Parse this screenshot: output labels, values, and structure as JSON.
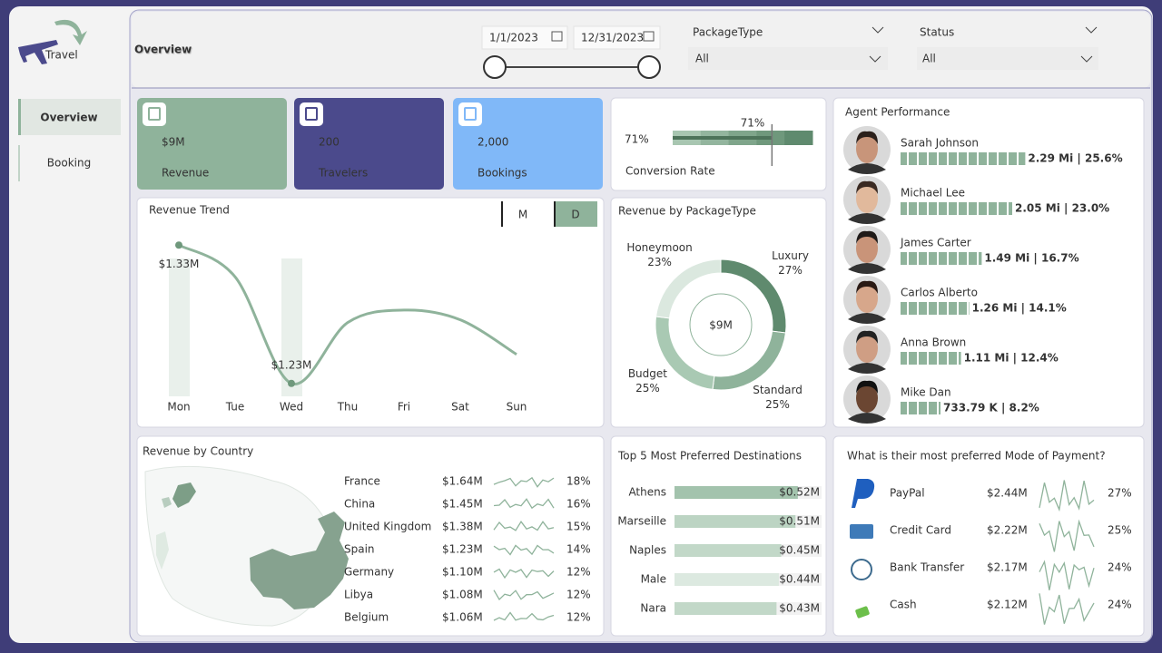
{
  "header": {
    "logo": "Travel",
    "title": "Overview"
  },
  "filters": {
    "start_date": "1/1/2023",
    "end_date": "12/31/2023",
    "package_type": {
      "label": "PackageType",
      "value": "All"
    },
    "status": {
      "label": "Status",
      "value": "All"
    }
  },
  "nav": {
    "items": [
      "Overview",
      "Booking"
    ],
    "active": 0
  },
  "kpis": [
    {
      "value": "$9M",
      "label": "Revenue",
      "color": "#8fb39b"
    },
    {
      "value": "200",
      "label": "Travelers",
      "color": "#4b4a8c"
    },
    {
      "value": "2,000",
      "label": "Bookings",
      "color": "#80b8f8"
    }
  ],
  "chart_data": [
    {
      "type": "bullet",
      "title": "Conversion Rate",
      "values": [
        71
      ],
      "value_labels": [
        "71%"
      ],
      "target": 71,
      "target_label": "71%",
      "xlim": [
        0,
        100
      ],
      "color": "#5f8a6e"
    },
    {
      "type": "line",
      "title": "Revenue Trend",
      "toggles": [
        "M",
        "D"
      ],
      "active_toggle": 1,
      "categories": [
        "Mon",
        "Tue",
        "Wed",
        "Thu",
        "Fri",
        "Sat",
        "Sun"
      ],
      "values": [
        1.33,
        1.307,
        1.23,
        1.274,
        1.283,
        1.276,
        1.251
      ],
      "value_labels": [
        "$1.33M",
        null,
        "$1.23M",
        null,
        null,
        null,
        null
      ],
      "ylim": [
        1.22,
        1.34
      ],
      "color": "#8fb39b"
    },
    {
      "type": "donut",
      "title": "Revenue by PackageType",
      "center_label": "$9M",
      "categories": [
        "Luxury",
        "Standard",
        "Budget",
        "Honeymoon"
      ],
      "values": [
        27,
        25,
        25,
        23
      ],
      "value_labels": [
        "27%",
        "25%",
        "25%",
        "23%"
      ],
      "colors": [
        "#5f8a6e",
        "#8fb39b",
        "#a9c9b3",
        "#dbe8df"
      ]
    },
    {
      "type": "hbar",
      "title": "Agent Performance",
      "categories": [
        "Sarah Johnson",
        "Michael Lee",
        "James Carter",
        "Carlos Alberto",
        "Anna Brown",
        "Mike Dan"
      ],
      "values": [
        2.29,
        2.05,
        1.49,
        1.26,
        1.11,
        0.73379
      ],
      "value_labels": [
        "2.29 Mi | 25.6%",
        "2.05 Mi | 23.0%",
        "1.49 Mi | 16.7%",
        "1.26 Mi | 14.1%",
        "1.11 Mi | 12.4%",
        "733.79 K | 8.2%"
      ],
      "xlim": [
        0,
        4
      ],
      "color": "#8fb39b"
    },
    {
      "type": "table",
      "title": "Revenue by Country",
      "rows": [
        [
          "France",
          "$1.64M",
          "18%"
        ],
        [
          "China",
          "$1.45M",
          "16%"
        ],
        [
          "United Kingdom",
          "$1.38M",
          "15%"
        ],
        [
          "Spain",
          "$1.23M",
          "14%"
        ],
        [
          "Germany",
          "$1.10M",
          "12%"
        ],
        [
          "Libya",
          "$1.08M",
          "12%"
        ],
        [
          "Belgium",
          "$1.06M",
          "12%"
        ]
      ]
    },
    {
      "type": "hbar",
      "title": "Top 5 Most Preferred Destinations",
      "categories": [
        "Athens",
        "Marseille",
        "Naples",
        "Male",
        "Nara"
      ],
      "values": [
        0.52,
        0.51,
        0.45,
        0.44,
        0.43
      ],
      "value_labels": [
        "$0.52M",
        "$0.51M",
        "$0.45M",
        "$0.44M",
        "$0.43M"
      ],
      "xlim": [
        0,
        0.62
      ],
      "colors": [
        "#a3c3ad",
        "#bcd4c3",
        "#c2d8c8",
        "#dce9e0",
        "#c2d8c8"
      ]
    },
    {
      "type": "table",
      "title": "What is their most preferred Mode of Payment?",
      "rows": [
        [
          "PayPal",
          "$2.44M",
          "27%"
        ],
        [
          "Credit Card",
          "$2.22M",
          "25%"
        ],
        [
          "Bank Transfer",
          "$2.17M",
          "24%"
        ],
        [
          "Cash",
          "$2.12M",
          "24%"
        ]
      ]
    }
  ]
}
